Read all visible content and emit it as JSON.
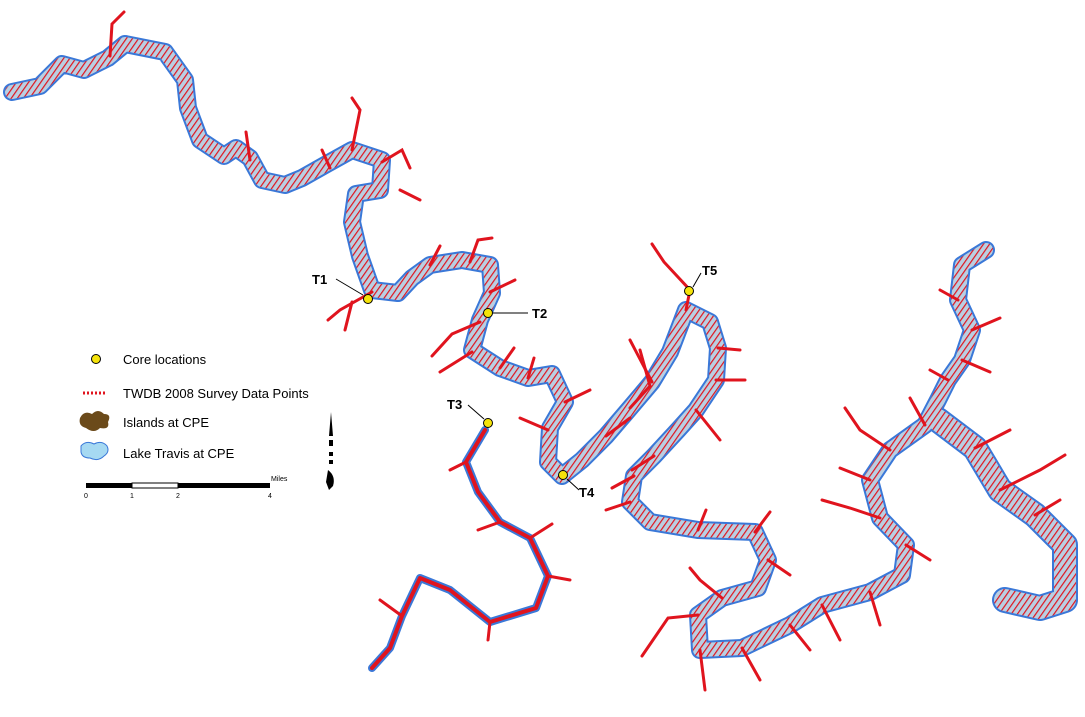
{
  "map": {
    "core_labels": [
      "T1",
      "T2",
      "T3",
      "T4",
      "T5"
    ],
    "legend": {
      "items": [
        {
          "label": "Core locations",
          "icon": "yellow-dot-icon"
        },
        {
          "label": "TWDB 2008 Survey Data Points",
          "icon": "red-dotted-line-icon"
        },
        {
          "label": "Islands at CPE",
          "icon": "brown-island-icon"
        },
        {
          "label": "Lake Travis at CPE",
          "icon": "blue-lake-icon"
        }
      ]
    },
    "scale_bar": {
      "unit": "Miles",
      "ticks": [
        "0",
        "1",
        "2",
        "4"
      ]
    },
    "colors": {
      "lake": "#a6c8e6",
      "shore": "#3a78d8",
      "survey": "#e0141e",
      "core": "#f5e30a",
      "island": "#6b4a1a"
    }
  }
}
